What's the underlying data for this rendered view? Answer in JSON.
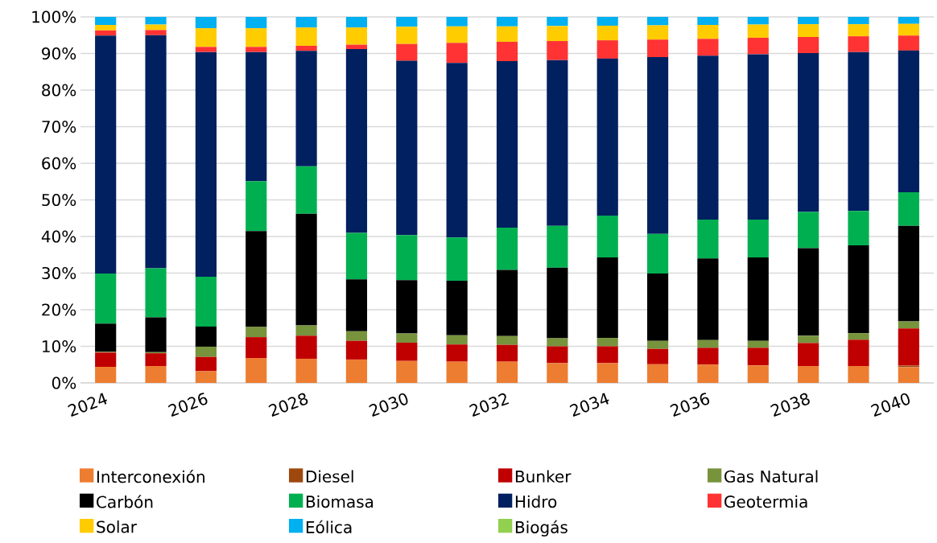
{
  "chart_data": {
    "type": "bar",
    "stacked": true,
    "categories": [
      "2024",
      null,
      "2026",
      null,
      "2028",
      null,
      "2030",
      null,
      "2032",
      null,
      "2034",
      null,
      "2036",
      null,
      "2038",
      null,
      "2040"
    ],
    "series": [
      {
        "name": "Interconexión",
        "color": "#ed7d31",
        "values": [
          4.4,
          4.6,
          3.2,
          6.8,
          6.6,
          6.4,
          6.0,
          5.8,
          5.8,
          5.4,
          5.4,
          5.1,
          5.0,
          4.8,
          4.6,
          4.6,
          4.3
        ]
      },
      {
        "name": "Diesel",
        "color": "#9e480e",
        "values": [
          0,
          0,
          0,
          0,
          0,
          0,
          0,
          0,
          0,
          0,
          0,
          0,
          0,
          0,
          0,
          0,
          0.4
        ]
      },
      {
        "name": "Bunker",
        "color": "#c00000",
        "values": [
          3.9,
          3.5,
          3.9,
          5.7,
          6.3,
          5.1,
          5.0,
          4.7,
          4.6,
          4.6,
          4.6,
          4.2,
          4.6,
          4.8,
          6.3,
          7.2,
          10.2
        ]
      },
      {
        "name": "Gas Natural",
        "color": "#77933c",
        "values": [
          0.2,
          0.3,
          2.8,
          2.8,
          2.8,
          2.6,
          2.5,
          2.5,
          2.4,
          2.2,
          2.3,
          2.2,
          2.1,
          1.9,
          2.0,
          1.8,
          1.9
        ]
      },
      {
        "name": "Carbón",
        "color": "#000000",
        "values": [
          7.7,
          9.5,
          5.5,
          26.2,
          30.5,
          14.2,
          14.6,
          14.9,
          18.1,
          19.3,
          22.0,
          18.4,
          22.3,
          22.8,
          23.9,
          24.0,
          26.1
        ]
      },
      {
        "name": "Biomasa",
        "color": "#00b050",
        "values": [
          13.7,
          13.4,
          13.6,
          13.6,
          13.0,
          12.7,
          12.3,
          11.8,
          11.5,
          11.4,
          11.4,
          10.8,
          10.6,
          10.3,
          9.9,
          9.4,
          9.2
        ]
      },
      {
        "name": "Hidro",
        "color": "#002060",
        "values": [
          65.0,
          63.7,
          61.4,
          35.3,
          31.5,
          50.2,
          47.6,
          47.7,
          45.5,
          45.3,
          42.9,
          48.3,
          44.8,
          45.2,
          43.4,
          43.4,
          38.7
        ]
      },
      {
        "name": "Geotermia",
        "color": "#ff3333",
        "values": [
          1.4,
          1.4,
          1.4,
          1.4,
          1.4,
          1.2,
          4.6,
          5.5,
          5.3,
          5.2,
          5.0,
          4.8,
          4.6,
          4.5,
          4.4,
          4.3,
          4.1
        ]
      },
      {
        "name": "Solar",
        "color": "#ffcc00",
        "values": [
          1.5,
          1.5,
          5.1,
          5.1,
          5.0,
          4.7,
          4.7,
          4.5,
          4.2,
          4.1,
          4.0,
          3.9,
          3.8,
          3.6,
          3.5,
          3.3,
          3.2
        ]
      },
      {
        "name": "Eólica",
        "color": "#00b0f0",
        "values": [
          2.2,
          2.1,
          3.1,
          3.1,
          2.9,
          2.9,
          2.7,
          2.6,
          2.6,
          2.5,
          2.4,
          2.3,
          2.2,
          2.1,
          2.0,
          2.0,
          1.9
        ]
      },
      {
        "name": "Biogás",
        "color": "#92d050",
        "values": [
          0,
          0,
          0,
          0,
          0,
          0,
          0,
          0,
          0,
          0,
          0,
          0,
          0,
          0,
          0,
          0,
          0
        ]
      }
    ],
    "ylim": [
      0,
      100
    ],
    "yticks": [
      {
        "value": 0,
        "label": "0%"
      },
      {
        "value": 10,
        "label": "10%"
      },
      {
        "value": 20,
        "label": "20%"
      },
      {
        "value": 30,
        "label": "30%"
      },
      {
        "value": 40,
        "label": "40%"
      },
      {
        "value": 50,
        "label": "50%"
      },
      {
        "value": 60,
        "label": "60%"
      },
      {
        "value": 70,
        "label": "70%"
      },
      {
        "value": 80,
        "label": "80%"
      },
      {
        "value": 90,
        "label": "90%"
      },
      {
        "value": 100,
        "label": "100%"
      }
    ],
    "grid": "y",
    "legend": "bottom"
  }
}
